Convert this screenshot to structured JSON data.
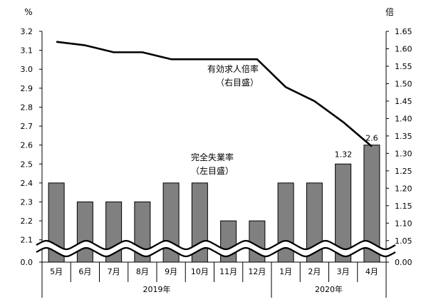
{
  "chart_data": {
    "type": "bar+line",
    "categories": [
      "5月",
      "6月",
      "7月",
      "8月",
      "9月",
      "10月",
      "11月",
      "12月",
      "1月",
      "2月",
      "3月",
      "4月"
    ],
    "year_groups": [
      {
        "label": "2019年",
        "categories": [
          "5月",
          "6月",
          "7月",
          "8月",
          "9月",
          "10月",
          "11月",
          "12月"
        ]
      },
      {
        "label": "2020年",
        "categories": [
          "1月",
          "2月",
          "3月",
          "4月"
        ]
      }
    ],
    "series": [
      {
        "kind": "bar",
        "axis": "left",
        "annotation": [
          "完全失業率",
          "（左目盛）"
        ],
        "values": [
          2.4,
          2.3,
          2.3,
          2.3,
          2.4,
          2.4,
          2.2,
          2.2,
          2.4,
          2.4,
          2.5,
          2.6
        ],
        "color": "#808080"
      },
      {
        "kind": "line",
        "axis": "right",
        "annotation": [
          "有効求人倍率",
          "（右目盛）"
        ],
        "values": [
          1.62,
          1.61,
          1.59,
          1.59,
          1.57,
          1.57,
          1.57,
          1.57,
          1.49,
          1.45,
          1.39,
          1.32
        ],
        "color": "#000000"
      }
    ],
    "data_labels": [
      {
        "series": 1,
        "index": 11,
        "text": "1.32"
      },
      {
        "series": 0,
        "index": 11,
        "text": "2.6"
      }
    ],
    "y_left": {
      "unit": "%",
      "ticks": [
        "3.2",
        "3.1",
        "3.0",
        "2.9",
        "2.8",
        "2.7",
        "2.6",
        "2.5",
        "2.4",
        "2.3",
        "2.2",
        "2.1"
      ],
      "bottom_tick": "0.0",
      "range": [
        2.05,
        3.2
      ],
      "axis_break": true
    },
    "y_right": {
      "unit": "倍",
      "ticks": [
        "1.65",
        "1.60",
        "1.55",
        "1.50",
        "1.45",
        "1.40",
        "1.35",
        "1.30",
        "1.25",
        "1.20",
        "1.15",
        "1.10",
        "1.05"
      ],
      "bottom_tick": "0.00",
      "range": [
        1.025,
        1.65
      ],
      "axis_break": true
    },
    "grid": false,
    "legend": "none"
  }
}
